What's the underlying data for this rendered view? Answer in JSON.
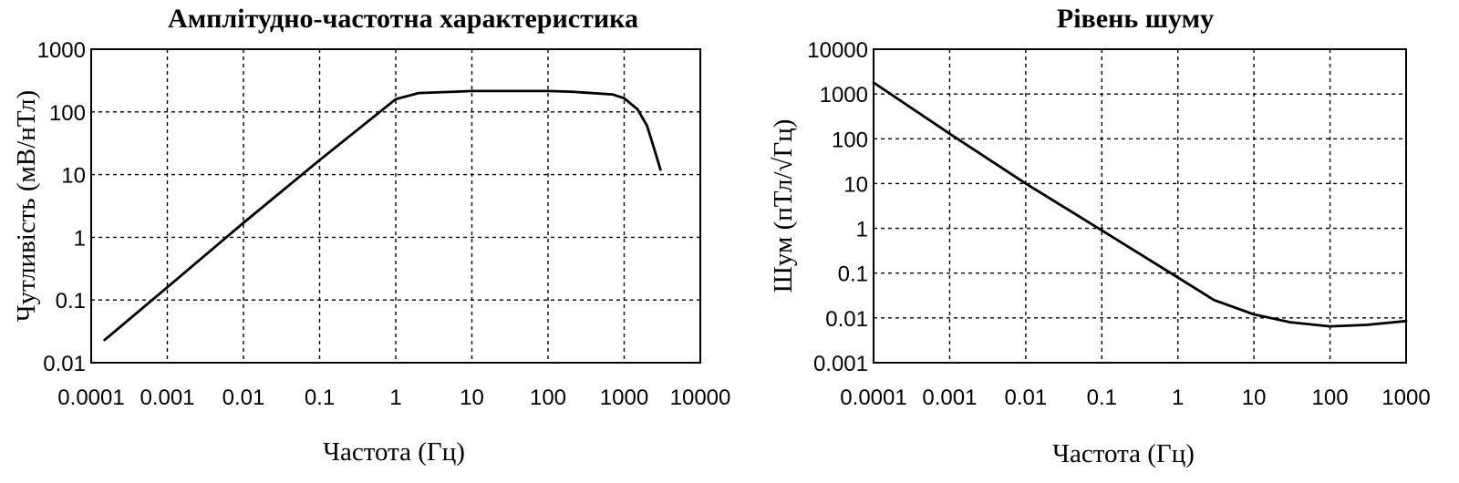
{
  "chart_data": [
    {
      "type": "line",
      "title": "Амплітудно-частотна характеристика",
      "xlabel": "Частота (Гц)",
      "ylabel": "Чутливість (мВ/нТл)",
      "x_scale": "log",
      "y_scale": "log",
      "xlim": [
        0.0001,
        10000
      ],
      "ylim": [
        0.01,
        1000
      ],
      "x_ticks": [
        "0.0001",
        "0.001",
        "0.01",
        "0.1",
        "1",
        "10",
        "100",
        "1000",
        "10000"
      ],
      "y_ticks": [
        "0.01",
        "0.1",
        "1",
        "10",
        "100",
        "1000"
      ],
      "grid": true,
      "series": [
        {
          "x": [
            0.00015,
            0.001,
            0.01,
            0.1,
            1,
            2,
            10,
            100,
            200,
            700,
            1000,
            1500,
            2000,
            2500,
            3000
          ],
          "y": [
            0.023,
            0.16,
            1.7,
            17,
            160,
            200,
            215,
            215,
            210,
            190,
            165,
            110,
            60,
            25,
            12
          ]
        }
      ]
    },
    {
      "type": "line",
      "title": "Рівень шуму",
      "xlabel": "Частота (Гц)",
      "ylabel": "Шум (пТл/√Гц)",
      "x_scale": "log",
      "y_scale": "log",
      "xlim": [
        0.0001,
        1000
      ],
      "ylim": [
        0.001,
        10000
      ],
      "x_ticks": [
        "0.0001",
        "0.001",
        "0.01",
        "0.1",
        "1",
        "10",
        "100",
        "1000"
      ],
      "y_ticks": [
        "0.001",
        "0.01",
        "0.1",
        "1",
        "10",
        "100",
        "1000",
        "10000"
      ],
      "grid": true,
      "series": [
        {
          "x": [
            0.0001,
            0.001,
            0.01,
            0.1,
            1,
            3,
            10,
            30,
            100,
            300,
            1000
          ],
          "y": [
            1800,
            130,
            10,
            0.9,
            0.08,
            0.025,
            0.012,
            0.008,
            0.0065,
            0.007,
            0.0085
          ]
        }
      ]
    }
  ]
}
